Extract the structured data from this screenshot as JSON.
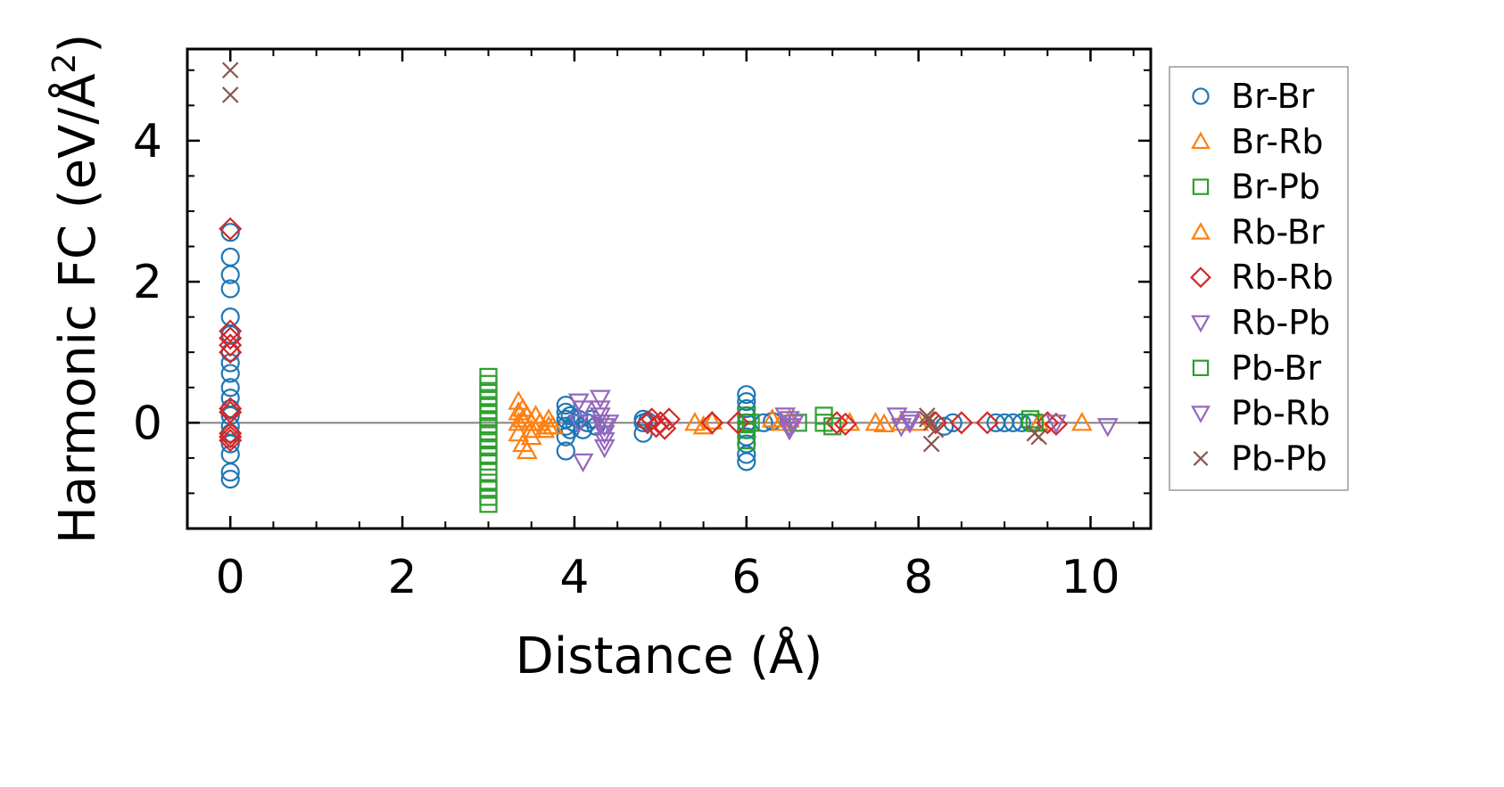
{
  "chart_data": {
    "type": "scatter",
    "xlabel": "Distance (Å)",
    "ylabel_main": "Harmonic FC (eV/Å",
    "ylabel_sup": "2",
    "ylabel_end": ")",
    "xlim": [
      -0.5,
      10.7
    ],
    "ylim": [
      -1.5,
      5.3
    ],
    "xticks": [
      0,
      2,
      4,
      6,
      8,
      10
    ],
    "xtick_labels": [
      "0",
      "2",
      "4",
      "6",
      "8",
      "10"
    ],
    "yticks": [
      0,
      2,
      4
    ],
    "ytick_labels": [
      "0",
      "2",
      "4"
    ],
    "legend_position": "right",
    "zero_line": true,
    "series": [
      {
        "name": "Br-Br",
        "marker": "circle",
        "color": "#1f77b4",
        "x": [
          0,
          0,
          0,
          0,
          0,
          0,
          0,
          0,
          0,
          0,
          0,
          0,
          0,
          0,
          0,
          0,
          0,
          0,
          0,
          3.9,
          3.9,
          3.9,
          3.9,
          3.9,
          3.9,
          3.95,
          3.95,
          4.0,
          4.05,
          4.1,
          4.15,
          4.2,
          4.25,
          4.8,
          4.8,
          4.8,
          4.85,
          6.0,
          6.0,
          6.0,
          6.0,
          6.0,
          6.0,
          6.0,
          6.0,
          6.0,
          6.0,
          6.2,
          6.3,
          8.3,
          8.4,
          8.9,
          9.0,
          9.1,
          9.2,
          9.3
        ],
        "y": [
          2.7,
          2.35,
          2.1,
          1.9,
          1.5,
          1.25,
          1.0,
          0.85,
          0.7,
          0.5,
          0.35,
          0.2,
          0.1,
          -0.05,
          -0.15,
          -0.3,
          -0.45,
          -0.7,
          -0.8,
          0.25,
          0.15,
          0.05,
          -0.05,
          -0.2,
          -0.4,
          0.1,
          -0.1,
          0.0,
          0.05,
          -0.1,
          0.0,
          0.05,
          -0.05,
          0.05,
          0.0,
          -0.15,
          0.02,
          0.4,
          0.3,
          0.2,
          0.1,
          0.0,
          -0.1,
          -0.2,
          -0.3,
          -0.45,
          -0.55,
          0.0,
          0.02,
          -0.05,
          0.0,
          0.0,
          0.0,
          0.0,
          0.0,
          0.0
        ]
      },
      {
        "name": "Br-Rb",
        "marker": "triangle-up",
        "color": "#ff7f0e",
        "x": [
          3.35,
          3.35,
          3.35,
          3.35,
          3.4,
          3.4,
          3.45,
          3.45,
          3.5,
          3.5,
          3.55,
          3.6,
          3.65,
          3.7,
          3.75,
          5.4,
          5.5,
          6.3,
          6.4,
          7.5,
          7.6,
          8.0,
          9.4,
          9.9
        ],
        "y": [
          0.3,
          0.15,
          0.0,
          -0.15,
          0.2,
          -0.3,
          0.1,
          -0.4,
          0.0,
          -0.2,
          0.1,
          0.0,
          -0.1,
          0.05,
          -0.05,
          0.0,
          -0.05,
          0.05,
          0.0,
          0.0,
          -0.02,
          0.0,
          0.0,
          0.0
        ]
      },
      {
        "name": "Br-Pb",
        "marker": "square",
        "color": "#2ca02c",
        "x": [
          3.0,
          3.0,
          3.0,
          3.0,
          3.0,
          3.0,
          3.0,
          3.0,
          3.0,
          3.0,
          3.0,
          3.0,
          3.0,
          3.0,
          3.0,
          3.0,
          3.0,
          3.0,
          6.0,
          6.0,
          6.0,
          6.0,
          6.6,
          6.9,
          7.0,
          9.3
        ],
        "y": [
          0.65,
          0.55,
          0.45,
          0.35,
          0.25,
          0.15,
          0.05,
          -0.05,
          -0.15,
          -0.25,
          -0.35,
          -0.45,
          -0.55,
          -0.7,
          -0.85,
          -0.95,
          -1.05,
          -1.15,
          0.1,
          0.0,
          -0.1,
          -0.25,
          0.0,
          0.0,
          -0.05,
          0.05
        ]
      },
      {
        "name": "Rb-Br",
        "marker": "triangle-up",
        "color": "#ff7f0e",
        "x": [
          3.4,
          3.5,
          3.6,
          3.7,
          5.6,
          6.5,
          7.2,
          7.8
        ],
        "y": [
          0.05,
          -0.1,
          0.0,
          -0.05,
          0.02,
          0.05,
          0.0,
          0.0
        ]
      },
      {
        "name": "Rb-Rb",
        "marker": "diamond",
        "color": "#d62728",
        "x": [
          0,
          0,
          0,
          0,
          0,
          0,
          0,
          0,
          0,
          0,
          4.85,
          4.9,
          4.95,
          5.0,
          5.05,
          5.1,
          5.6,
          5.9,
          7.05,
          7.15,
          8.2,
          8.5,
          8.8,
          9.5,
          9.6
        ],
        "y": [
          2.75,
          1.3,
          1.2,
          1.1,
          1.0,
          0.2,
          0.15,
          -0.15,
          -0.2,
          -0.25,
          0.0,
          0.05,
          -0.05,
          0.0,
          -0.08,
          0.05,
          0.0,
          0.0,
          0.0,
          -0.02,
          0.0,
          0.0,
          0.0,
          0.0,
          -0.02
        ]
      },
      {
        "name": "Rb-Pb",
        "marker": "triangle-down",
        "color": "#9467bd",
        "x": [
          4.05,
          4.05,
          4.1,
          4.1,
          4.3,
          4.3,
          4.3,
          4.35,
          4.35,
          4.35,
          4.35,
          4.4,
          6.45,
          6.5,
          6.5,
          6.55,
          7.75,
          7.8,
          7.9,
          9.6,
          10.2
        ],
        "y": [
          0.3,
          0.0,
          -0.55,
          0.2,
          0.35,
          0.2,
          0.1,
          -0.05,
          -0.15,
          -0.25,
          -0.35,
          0.0,
          0.1,
          0.05,
          -0.1,
          0.0,
          0.1,
          -0.05,
          0.0,
          0.0,
          -0.05
        ]
      },
      {
        "name": "Pb-Br",
        "marker": "square",
        "color": "#2ca02c",
        "x": [
          6.05,
          6.9,
          9.35
        ],
        "y": [
          0.0,
          0.1,
          0.0
        ]
      },
      {
        "name": "Pb-Rb",
        "marker": "triangle-down",
        "color": "#9467bd",
        "x": [
          4.3,
          6.5,
          7.9
        ],
        "y": [
          0.0,
          -0.05,
          0.05
        ]
      },
      {
        "name": "Pb-Pb",
        "marker": "x",
        "color": "#8c564b",
        "x": [
          0,
          0,
          8.1,
          8.15,
          8.2,
          8.15,
          8.1,
          9.35,
          9.4
        ],
        "y": [
          5.0,
          4.65,
          0.1,
          0.0,
          -0.1,
          -0.3,
          0.05,
          -0.15,
          -0.2
        ]
      }
    ]
  }
}
